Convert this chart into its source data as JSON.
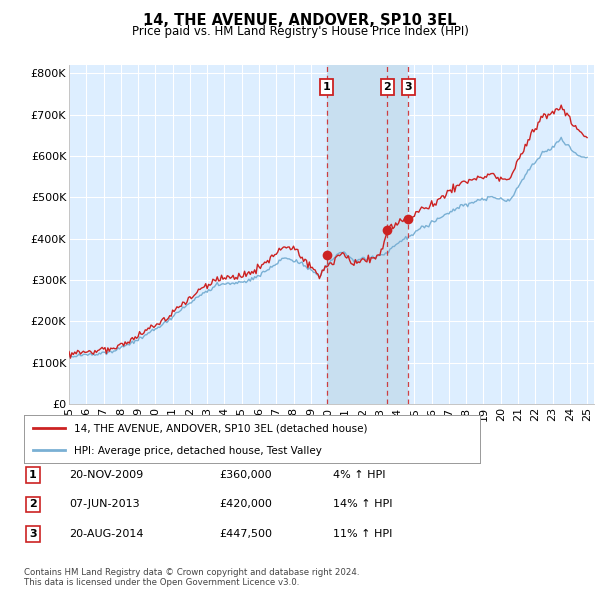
{
  "title": "14, THE AVENUE, ANDOVER, SP10 3EL",
  "subtitle": "Price paid vs. HM Land Registry's House Price Index (HPI)",
  "ylabel_values": [
    "£0",
    "£100K",
    "£200K",
    "£300K",
    "£400K",
    "£500K",
    "£600K",
    "£700K",
    "£800K"
  ],
  "ylim": [
    0,
    820000
  ],
  "yticks": [
    0,
    100000,
    200000,
    300000,
    400000,
    500000,
    600000,
    700000,
    800000
  ],
  "sale_dates": [
    2009.917,
    2013.44,
    2014.64
  ],
  "sale_prices": [
    360000,
    420000,
    447500
  ],
  "sale_labels": [
    "1",
    "2",
    "3"
  ],
  "legend_line1": "14, THE AVENUE, ANDOVER, SP10 3EL (detached house)",
  "legend_line2": "HPI: Average price, detached house, Test Valley",
  "footer": "Contains HM Land Registry data © Crown copyright and database right 2024.\nThis data is licensed under the Open Government Licence v3.0.",
  "hpi_color": "#7ab0d4",
  "sale_color": "#cc2222",
  "bg_color": "#ddeeff",
  "shade_color": "#c8dff0",
  "grid_color": "#ffffff",
  "table_rows": [
    [
      "1",
      "20-NOV-2009",
      "£360,000",
      "4% ↑ HPI"
    ],
    [
      "2",
      "07-JUN-2013",
      "£420,000",
      "14% ↑ HPI"
    ],
    [
      "3",
      "20-AUG-2014",
      "£447,500",
      "11% ↑ HPI"
    ]
  ]
}
